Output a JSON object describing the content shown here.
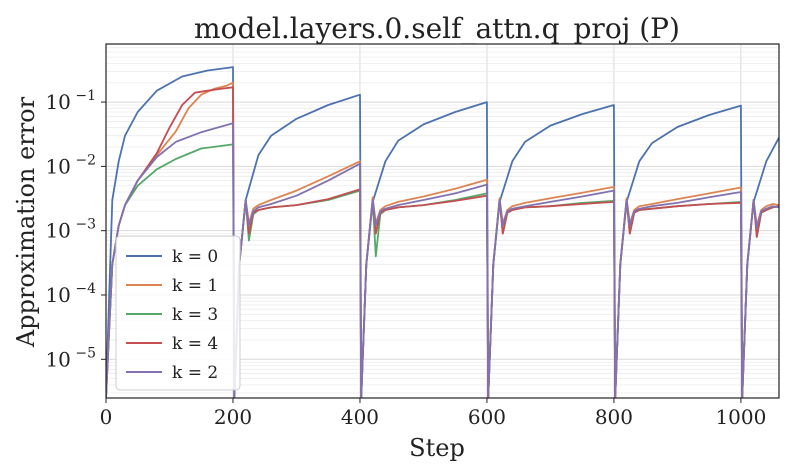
{
  "chart_data": {
    "type": "line",
    "title": "model.layers.0.self_attn.q_proj (P)",
    "xlabel": "Step",
    "ylabel": "Approximation error",
    "xlim": [
      0,
      1060
    ],
    "ylim": [
      2.5e-06,
      0.8
    ],
    "yscale": "log",
    "grid": true,
    "legend_position": "lower-left",
    "x_ticks": [
      {
        "value": 0,
        "label": "0"
      },
      {
        "value": 200,
        "label": "200"
      },
      {
        "value": 400,
        "label": "400"
      },
      {
        "value": 600,
        "label": "600"
      },
      {
        "value": 800,
        "label": "800"
      },
      {
        "value": 1000,
        "label": "1000"
      }
    ],
    "y_ticks": [
      {
        "value": 1e-05,
        "base": "10",
        "exp": "−5"
      },
      {
        "value": 0.0001,
        "base": "10",
        "exp": "−4"
      },
      {
        "value": 0.001,
        "base": "10",
        "exp": "−3"
      },
      {
        "value": 0.01,
        "base": "10",
        "exp": "−2"
      },
      {
        "value": 0.1,
        "base": "10",
        "exp": "−1"
      }
    ],
    "series": [
      {
        "name": "k = 0",
        "color": "#4c72b0",
        "x": [
          0,
          5,
          10,
          20,
          30,
          50,
          80,
          120,
          160,
          200,
          202,
          210,
          220,
          240,
          260,
          300,
          350,
          400,
          402,
          410,
          420,
          440,
          460,
          500,
          550,
          600,
          602,
          610,
          620,
          640,
          660,
          700,
          750,
          800,
          802,
          810,
          820,
          840,
          860,
          900,
          950,
          1000,
          1002,
          1010,
          1020,
          1040,
          1060
        ],
        "y": [
          2.5e-06,
          0.0001,
          0.003,
          0.012,
          0.03,
          0.07,
          0.15,
          0.25,
          0.31,
          0.35,
          2.5e-06,
          0.0003,
          0.003,
          0.015,
          0.03,
          0.055,
          0.09,
          0.13,
          2.5e-06,
          0.0003,
          0.0028,
          0.012,
          0.025,
          0.045,
          0.07,
          0.1,
          2.5e-06,
          0.0003,
          0.0028,
          0.012,
          0.024,
          0.043,
          0.065,
          0.09,
          2.5e-06,
          0.0003,
          0.0028,
          0.012,
          0.023,
          0.041,
          0.063,
          0.088,
          2.5e-06,
          0.0003,
          0.0028,
          0.012,
          0.028
        ]
      },
      {
        "name": "k = 1",
        "color": "#dd8452",
        "x": [
          0,
          5,
          10,
          20,
          30,
          50,
          80,
          110,
          130,
          150,
          170,
          190,
          200,
          202,
          210,
          220,
          225,
          232,
          240,
          260,
          300,
          350,
          400,
          402,
          410,
          420,
          425,
          432,
          440,
          460,
          500,
          550,
          600,
          602,
          610,
          620,
          625,
          632,
          640,
          660,
          700,
          750,
          800,
          802,
          810,
          820,
          825,
          832,
          840,
          860,
          900,
          950,
          1000,
          1002,
          1010,
          1020,
          1025,
          1032,
          1040,
          1050,
          1060
        ],
        "y": [
          2.5e-06,
          3e-05,
          0.0003,
          0.0012,
          0.0025,
          0.006,
          0.015,
          0.035,
          0.08,
          0.13,
          0.16,
          0.18,
          0.2,
          2.5e-06,
          0.0003,
          0.003,
          0.0013,
          0.0022,
          0.0025,
          0.003,
          0.0042,
          0.007,
          0.012,
          2.5e-06,
          0.0003,
          0.0033,
          0.0013,
          0.0021,
          0.0024,
          0.0028,
          0.0034,
          0.0045,
          0.0062,
          2.5e-06,
          0.0003,
          0.0032,
          0.0013,
          0.0021,
          0.0024,
          0.0027,
          0.0032,
          0.0039,
          0.0048,
          2.5e-06,
          0.0003,
          0.0032,
          0.0013,
          0.0021,
          0.0024,
          0.0026,
          0.0031,
          0.0038,
          0.0047,
          2.5e-06,
          0.0003,
          0.003,
          0.0012,
          0.0021,
          0.0024,
          0.0026,
          0.0025
        ]
      },
      {
        "name": "k = 3",
        "color": "#55a868",
        "x": [
          0,
          5,
          10,
          20,
          30,
          50,
          80,
          110,
          150,
          200,
          202,
          210,
          220,
          225,
          232,
          240,
          260,
          300,
          350,
          400,
          402,
          410,
          420,
          425,
          432,
          440,
          460,
          500,
          550,
          600,
          602,
          610,
          620,
          625,
          632,
          640,
          660,
          700,
          750,
          800,
          802,
          810,
          820,
          825,
          832,
          840,
          860,
          900,
          950,
          1000,
          1002,
          1010,
          1020,
          1025,
          1032,
          1040,
          1050,
          1060
        ],
        "y": [
          2.5e-06,
          3e-05,
          0.0003,
          0.0012,
          0.0025,
          0.005,
          0.009,
          0.013,
          0.019,
          0.022,
          2.5e-06,
          0.0003,
          0.003,
          0.0007,
          0.0018,
          0.0021,
          0.0023,
          0.0025,
          0.003,
          0.0042,
          2.5e-06,
          0.0003,
          0.003,
          0.0004,
          0.0018,
          0.0021,
          0.0023,
          0.0025,
          0.003,
          0.0038,
          2.5e-06,
          0.0003,
          0.003,
          0.0009,
          0.0019,
          0.0021,
          0.0023,
          0.0024,
          0.0027,
          0.0029,
          2.5e-06,
          0.0003,
          0.003,
          0.0009,
          0.0019,
          0.0021,
          0.0022,
          0.0024,
          0.0026,
          0.0028,
          2.5e-06,
          0.0003,
          0.003,
          0.0008,
          0.0019,
          0.0021,
          0.0023,
          0.0024
        ]
      },
      {
        "name": "k = 4",
        "color": "#c44e52",
        "x": [
          0,
          5,
          10,
          20,
          30,
          50,
          80,
          100,
          120,
          140,
          160,
          180,
          200,
          202,
          210,
          220,
          225,
          232,
          240,
          260,
          300,
          350,
          400,
          402,
          410,
          420,
          425,
          432,
          440,
          460,
          500,
          550,
          600,
          602,
          610,
          620,
          625,
          632,
          640,
          660,
          700,
          750,
          800,
          802,
          810,
          820,
          825,
          832,
          840,
          860,
          900,
          950,
          1000,
          1002,
          1010,
          1020,
          1025,
          1032,
          1040,
          1050,
          1060
        ],
        "y": [
          2.5e-06,
          3e-05,
          0.0003,
          0.0012,
          0.0025,
          0.006,
          0.016,
          0.04,
          0.09,
          0.14,
          0.15,
          0.16,
          0.17,
          2.5e-06,
          0.0003,
          0.003,
          0.0009,
          0.0019,
          0.0021,
          0.0023,
          0.0025,
          0.0031,
          0.0044,
          2.5e-06,
          0.0003,
          0.003,
          0.0009,
          0.0019,
          0.0021,
          0.0023,
          0.0025,
          0.0029,
          0.0035,
          2.5e-06,
          0.0003,
          0.003,
          0.0009,
          0.0019,
          0.0021,
          0.0023,
          0.0024,
          0.0026,
          0.0028,
          2.5e-06,
          0.0003,
          0.003,
          0.0009,
          0.0019,
          0.0021,
          0.0022,
          0.0024,
          0.0026,
          0.0027,
          2.5e-06,
          0.0003,
          0.003,
          0.0008,
          0.0019,
          0.0021,
          0.0023,
          0.0024
        ]
      },
      {
        "name": "k = 2",
        "color": "#8172b2",
        "x": [
          0,
          5,
          10,
          20,
          30,
          50,
          80,
          110,
          150,
          200,
          202,
          210,
          220,
          225,
          232,
          240,
          260,
          300,
          350,
          400,
          402,
          410,
          420,
          425,
          432,
          440,
          460,
          500,
          550,
          600,
          602,
          610,
          620,
          625,
          632,
          640,
          660,
          700,
          750,
          800,
          802,
          810,
          820,
          825,
          832,
          840,
          860,
          900,
          950,
          1000,
          1002,
          1010,
          1020,
          1025,
          1032,
          1040,
          1050,
          1060
        ],
        "y": [
          2.5e-06,
          3e-05,
          0.0003,
          0.0012,
          0.0025,
          0.006,
          0.014,
          0.024,
          0.034,
          0.047,
          2.5e-06,
          0.0003,
          0.003,
          0.0012,
          0.002,
          0.0023,
          0.0026,
          0.0035,
          0.006,
          0.011,
          2.5e-06,
          0.0003,
          0.003,
          0.0012,
          0.002,
          0.0022,
          0.0025,
          0.003,
          0.0038,
          0.0052,
          2.5e-06,
          0.0003,
          0.003,
          0.0012,
          0.002,
          0.0022,
          0.0024,
          0.0028,
          0.0034,
          0.0042,
          2.5e-06,
          0.0003,
          0.003,
          0.0012,
          0.002,
          0.0022,
          0.0024,
          0.0027,
          0.0033,
          0.004,
          2.5e-06,
          0.0003,
          0.003,
          0.0011,
          0.002,
          0.0022,
          0.0024,
          0.0023
        ]
      }
    ]
  }
}
